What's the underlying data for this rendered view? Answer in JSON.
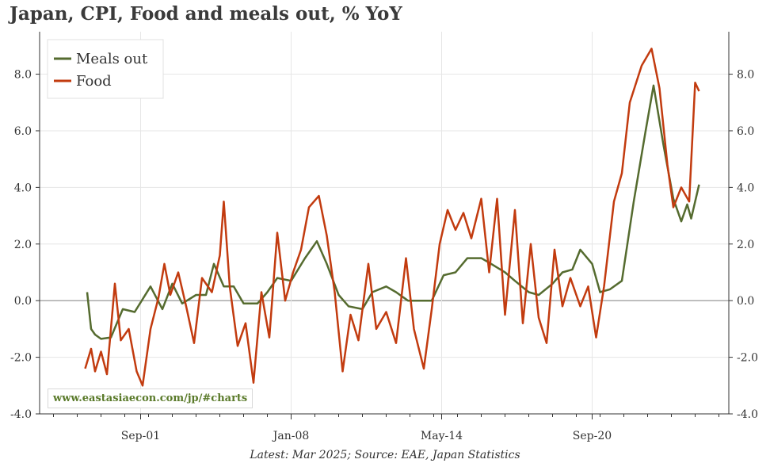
{
  "chart_data": {
    "type": "line",
    "title": "Japan, CPI, Food and meals out, % YoY",
    "note": "Latest: Mar 2025; Source: EAE, Japan Statistics",
    "watermark": "www.eastasiaecon.com/jp/#charts",
    "xlabel": "",
    "ylabel": "",
    "ylim": [
      -4.0,
      9.5
    ],
    "yticks": [
      -4.0,
      -2.0,
      0.0,
      2.0,
      4.0,
      6.0,
      8.0
    ],
    "ytick_labels": [
      "-4.0",
      "-2.0",
      "0.0",
      "2.0",
      "4.0",
      "6.0",
      "8.0"
    ],
    "xlim": [
      "1997-06",
      "2026-06"
    ],
    "xticks": [
      "2001-09",
      "2008-01",
      "2014-05",
      "2020-09"
    ],
    "xtick_labels": [
      "Sep-01",
      "Jan-08",
      "May-14",
      "Sep-20"
    ],
    "grid": true,
    "legend_position": "top-left",
    "colors": {
      "meals_out": "#556b2f",
      "food": "#c23b0f",
      "zero_line": "#8c8c8c",
      "grid": "#e6e6e6"
    },
    "series": [
      {
        "name": "Meals out",
        "color": "#556b2f",
        "points": [
          [
            "1999-06",
            0.3
          ],
          [
            "1999-08",
            -1.0
          ],
          [
            "1999-10",
            -1.2
          ],
          [
            "2000-01",
            -1.35
          ],
          [
            "2000-06",
            -1.3
          ],
          [
            "2000-12",
            -0.3
          ],
          [
            "2001-06",
            -0.4
          ],
          [
            "2002-02",
            0.5
          ],
          [
            "2002-08",
            -0.3
          ],
          [
            "2003-01",
            0.6
          ],
          [
            "2003-06",
            -0.1
          ],
          [
            "2004-01",
            0.2
          ],
          [
            "2004-06",
            0.2
          ],
          [
            "2004-10",
            1.3
          ],
          [
            "2005-03",
            0.5
          ],
          [
            "2005-08",
            0.5
          ],
          [
            "2006-01",
            -0.1
          ],
          [
            "2006-08",
            -0.1
          ],
          [
            "2007-01",
            0.3
          ],
          [
            "2007-06",
            0.8
          ],
          [
            "2008-01",
            0.7
          ],
          [
            "2008-08",
            1.5
          ],
          [
            "2009-02",
            2.1
          ],
          [
            "2009-07",
            1.3
          ],
          [
            "2010-01",
            0.2
          ],
          [
            "2010-06",
            -0.2
          ],
          [
            "2011-01",
            -0.3
          ],
          [
            "2011-06",
            0.3
          ],
          [
            "2012-01",
            0.5
          ],
          [
            "2012-06",
            0.3
          ],
          [
            "2012-12",
            0.0
          ],
          [
            "2013-06",
            0.0
          ],
          [
            "2013-12",
            0.0
          ],
          [
            "2014-06",
            0.9
          ],
          [
            "2014-12",
            1.0
          ],
          [
            "2015-06",
            1.5
          ],
          [
            "2016-01",
            1.5
          ],
          [
            "2016-06",
            1.3
          ],
          [
            "2017-01",
            1.0
          ],
          [
            "2017-06",
            0.7
          ],
          [
            "2018-01",
            0.3
          ],
          [
            "2018-06",
            0.2
          ],
          [
            "2019-01",
            0.6
          ],
          [
            "2019-06",
            1.0
          ],
          [
            "2019-11",
            1.1
          ],
          [
            "2020-03",
            1.8
          ],
          [
            "2020-09",
            1.3
          ],
          [
            "2021-01",
            0.3
          ],
          [
            "2021-06",
            0.4
          ],
          [
            "2021-12",
            0.7
          ],
          [
            "2022-06",
            3.5
          ],
          [
            "2022-12",
            6.0
          ],
          [
            "2023-04",
            7.6
          ],
          [
            "2023-09",
            5.5
          ],
          [
            "2024-02",
            3.6
          ],
          [
            "2024-06",
            2.8
          ],
          [
            "2024-09",
            3.4
          ],
          [
            "2024-11",
            2.9
          ],
          [
            "2025-01",
            3.5
          ],
          [
            "2025-03",
            4.1
          ]
        ]
      },
      {
        "name": "Food",
        "color": "#c23b0f",
        "points": [
          [
            "1999-05",
            -2.4
          ],
          [
            "1999-08",
            -1.7
          ],
          [
            "1999-10",
            -2.5
          ],
          [
            "2000-01",
            -1.8
          ],
          [
            "2000-04",
            -2.6
          ],
          [
            "2000-08",
            0.6
          ],
          [
            "2000-11",
            -1.4
          ],
          [
            "2001-03",
            -1.0
          ],
          [
            "2001-07",
            -2.5
          ],
          [
            "2001-10",
            -3.0
          ],
          [
            "2002-02",
            -1.0
          ],
          [
            "2002-06",
            0.1
          ],
          [
            "2002-09",
            1.3
          ],
          [
            "2002-12",
            0.2
          ],
          [
            "2003-04",
            1.0
          ],
          [
            "2003-08",
            -0.2
          ],
          [
            "2003-12",
            -1.5
          ],
          [
            "2004-04",
            0.8
          ],
          [
            "2004-09",
            0.3
          ],
          [
            "2005-01",
            1.6
          ],
          [
            "2005-03",
            3.5
          ],
          [
            "2005-06",
            0.5
          ],
          [
            "2005-10",
            -1.6
          ],
          [
            "2006-02",
            -0.8
          ],
          [
            "2006-06",
            -2.9
          ],
          [
            "2006-10",
            0.3
          ],
          [
            "2007-02",
            -1.3
          ],
          [
            "2007-06",
            2.4
          ],
          [
            "2007-10",
            0.0
          ],
          [
            "2008-02",
            1.0
          ],
          [
            "2008-06",
            1.8
          ],
          [
            "2008-10",
            3.3
          ],
          [
            "2009-03",
            3.7
          ],
          [
            "2009-07",
            2.3
          ],
          [
            "2009-11",
            0.3
          ],
          [
            "2010-03",
            -2.5
          ],
          [
            "2010-07",
            -0.5
          ],
          [
            "2010-11",
            -1.4
          ],
          [
            "2011-04",
            1.3
          ],
          [
            "2011-08",
            -1.0
          ],
          [
            "2012-01",
            -0.4
          ],
          [
            "2012-06",
            -1.5
          ],
          [
            "2012-11",
            1.5
          ],
          [
            "2013-03",
            -1.0
          ],
          [
            "2013-08",
            -2.4
          ],
          [
            "2013-12",
            -0.3
          ],
          [
            "2014-04",
            2.0
          ],
          [
            "2014-08",
            3.2
          ],
          [
            "2014-12",
            2.5
          ],
          [
            "2015-04",
            3.1
          ],
          [
            "2015-08",
            2.2
          ],
          [
            "2016-01",
            3.6
          ],
          [
            "2016-05",
            1.0
          ],
          [
            "2016-09",
            3.6
          ],
          [
            "2017-01",
            -0.5
          ],
          [
            "2017-06",
            3.2
          ],
          [
            "2017-10",
            -0.8
          ],
          [
            "2018-02",
            2.0
          ],
          [
            "2018-06",
            -0.6
          ],
          [
            "2018-10",
            -1.5
          ],
          [
            "2019-02",
            1.8
          ],
          [
            "2019-06",
            -0.2
          ],
          [
            "2019-10",
            0.8
          ],
          [
            "2020-03",
            -0.2
          ],
          [
            "2020-07",
            0.5
          ],
          [
            "2020-11",
            -1.3
          ],
          [
            "2021-03",
            0.5
          ],
          [
            "2021-08",
            3.5
          ],
          [
            "2021-12",
            4.5
          ],
          [
            "2022-04",
            7.0
          ],
          [
            "2022-10",
            8.3
          ],
          [
            "2023-03",
            8.9
          ],
          [
            "2023-07",
            7.5
          ],
          [
            "2023-11",
            4.8
          ],
          [
            "2024-02",
            3.3
          ],
          [
            "2024-06",
            4.0
          ],
          [
            "2024-10",
            3.5
          ],
          [
            "2025-01",
            7.7
          ],
          [
            "2025-03",
            7.4
          ]
        ]
      }
    ]
  }
}
